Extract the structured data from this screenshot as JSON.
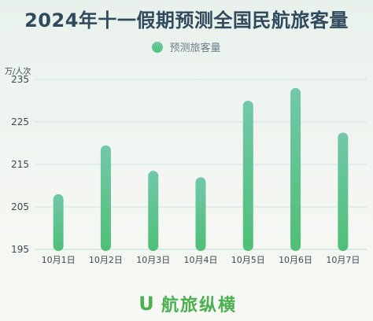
{
  "chart_data": {
    "type": "bar",
    "title": "2024年十一假期预测全国民航旅客量",
    "ylabel": "万/人次",
    "xlabel": "",
    "categories": [
      "10月1日",
      "10月2日",
      "10月3日",
      "10月4日",
      "10月5日",
      "10月6日",
      "10月7日"
    ],
    "series": [
      {
        "name": "预测旅客量",
        "values": [
          208,
          219.5,
          213.5,
          212,
          230,
          233,
          222.5
        ]
      }
    ],
    "ylim": [
      195,
      235
    ],
    "yticks": [
      195,
      205,
      215,
      225,
      235
    ],
    "grid": true,
    "legend_position": "top-center",
    "colors": {
      "bar_top": "#72c8aa",
      "bar_bottom": "#4fbf76",
      "grid": "#c9e6e6"
    }
  },
  "logo": {
    "mark": "U",
    "text": "航旅纵横"
  }
}
